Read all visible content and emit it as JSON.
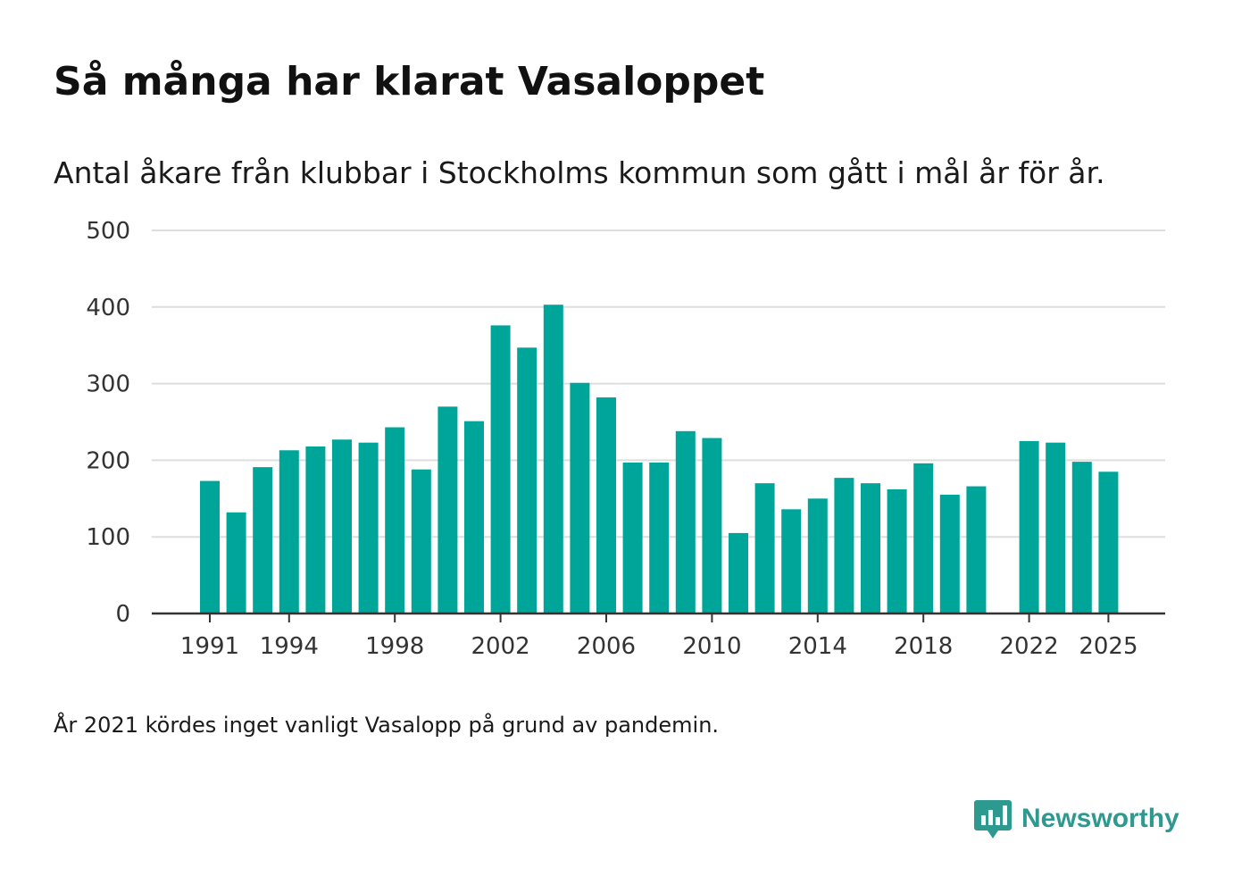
{
  "title": "Så många har klarat Vasaloppet",
  "subtitle": "Antal åkare från klubbar i Stockholms kommun som gått i mål år för år.",
  "footnote": "År 2021 kördes inget vanligt Vasalopp på grund av pandemin.",
  "brand": {
    "name": "Newsworthy",
    "icon": "newsworthy-logo-icon"
  },
  "colors": {
    "bar": "#00a59a",
    "grid": "#dddddd",
    "axis": "#333333",
    "brand": "#2e9a8f"
  },
  "chart_data": {
    "type": "bar",
    "title": "Så många har klarat Vasaloppet",
    "subtitle": "Antal åkare från klubbar i Stockholms kommun som gått i mål år för år.",
    "xlabel": "",
    "ylabel": "",
    "ylim": [
      0,
      500
    ],
    "yticks": [
      0,
      100,
      200,
      300,
      400,
      500
    ],
    "xticks": [
      1991,
      1994,
      1998,
      2002,
      2006,
      2010,
      2014,
      2018,
      2022,
      2025
    ],
    "grid": true,
    "categories": [
      1991,
      1992,
      1993,
      1994,
      1995,
      1996,
      1997,
      1998,
      1999,
      2000,
      2001,
      2002,
      2003,
      2004,
      2005,
      2006,
      2007,
      2008,
      2009,
      2010,
      2011,
      2012,
      2013,
      2014,
      2015,
      2016,
      2017,
      2018,
      2019,
      2020,
      2021,
      2022,
      2023,
      2024,
      2025
    ],
    "values": [
      173,
      132,
      191,
      213,
      218,
      227,
      223,
      243,
      188,
      270,
      251,
      376,
      347,
      403,
      301,
      282,
      197,
      197,
      238,
      229,
      105,
      170,
      136,
      150,
      177,
      170,
      162,
      196,
      155,
      166,
      null,
      225,
      223,
      198,
      185
    ]
  }
}
